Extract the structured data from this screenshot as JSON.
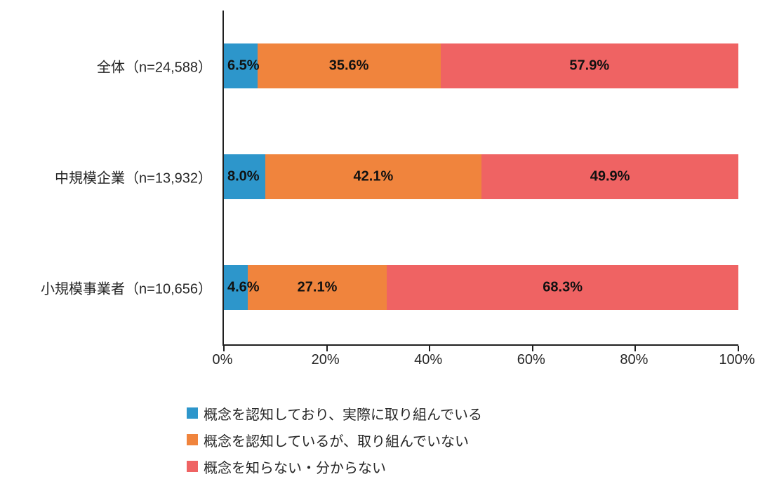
{
  "chart_data": {
    "type": "bar",
    "orientation": "horizontal",
    "stacked": true,
    "unit": "%",
    "title": "",
    "categories": [
      "全体（n=24,588）",
      "中規模企業（n=13,932）",
      "小規模事業者（n=10,656）"
    ],
    "series": [
      {
        "name": "概念を認知しており、実際に取り組んでいる",
        "color": "#2D96CB",
        "values": [
          6.5,
          8.0,
          4.6
        ],
        "labels": [
          "6.5%",
          "8.0%",
          "4.6%"
        ]
      },
      {
        "name": "概念を認知しているが、取り組んでいない",
        "color": "#F0843D",
        "values": [
          35.6,
          42.1,
          27.1
        ],
        "labels": [
          "35.6%",
          "42.1%",
          "27.1%"
        ]
      },
      {
        "name": "概念を知らない・分からない",
        "color": "#EF6363",
        "values": [
          57.9,
          49.9,
          68.3
        ],
        "labels": [
          "57.9%",
          "49.9%",
          "68.3%"
        ]
      }
    ],
    "x_ticks": [
      "0%",
      "20%",
      "40%",
      "60%",
      "80%",
      "100%"
    ],
    "xlim": [
      0,
      100
    ],
    "grid": false,
    "legend_position": "bottom-left",
    "axis_color": "#1f1f1f"
  }
}
